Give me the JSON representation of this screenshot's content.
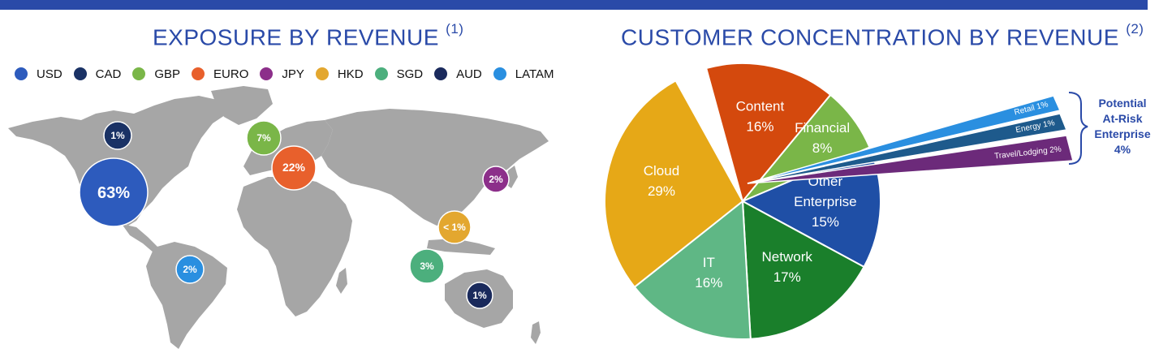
{
  "colors": {
    "accent": "#2a4aa8",
    "map": "#a6a6a6"
  },
  "exposure": {
    "title": "EXPOSURE BY REVENUE",
    "note": "(1)",
    "legend": [
      {
        "name": "USD",
        "color": "#2d5bbd"
      },
      {
        "name": "CAD",
        "color": "#1a3265"
      },
      {
        "name": "GBP",
        "color": "#7ab648"
      },
      {
        "name": "EURO",
        "color": "#e8602c"
      },
      {
        "name": "JPY",
        "color": "#8c2f8a"
      },
      {
        "name": "HKD",
        "color": "#e3a72f"
      },
      {
        "name": "SGD",
        "color": "#4caf7d"
      },
      {
        "name": "AUD",
        "color": "#1a2a5c"
      },
      {
        "name": "LATAM",
        "color": "#2a8fe0"
      }
    ]
  },
  "chart_data": [
    {
      "type": "bubble-map",
      "title": "EXPOSURE BY REVENUE",
      "points": [
        {
          "currency": "USD",
          "label": "63%",
          "value": 63
        },
        {
          "currency": "CAD",
          "label": "1%",
          "value": 1
        },
        {
          "currency": "GBP",
          "label": "7%",
          "value": 7
        },
        {
          "currency": "EURO",
          "label": "22%",
          "value": 22
        },
        {
          "currency": "JPY",
          "label": "2%",
          "value": 2
        },
        {
          "currency": "HKD",
          "label": "< 1%",
          "value": 0.5
        },
        {
          "currency": "SGD",
          "label": "3%",
          "value": 3
        },
        {
          "currency": "AUD",
          "label": "1%",
          "value": 1
        },
        {
          "currency": "LATAM",
          "label": "2%",
          "value": 2
        }
      ]
    },
    {
      "type": "pie",
      "title": "CUSTOMER CONCENTRATION BY REVENUE",
      "note": "(2)",
      "slices": [
        {
          "label": "Content",
          "value": 16,
          "pct": "16%",
          "color": "#d4490d"
        },
        {
          "label": "Financial",
          "value": 8,
          "pct": "8%",
          "color": "#7ab648"
        },
        {
          "label": "Other Enterprise",
          "value": 15,
          "pct": "15%",
          "color": "#1f4fa6"
        },
        {
          "label": "Network",
          "value": 17,
          "pct": "17%",
          "color": "#1a7f2b"
        },
        {
          "label": "IT",
          "value": 16,
          "pct": "16%",
          "color": "#5fb785"
        },
        {
          "label": "Cloud",
          "value": 29,
          "pct": "29%",
          "color": "#e6a817"
        }
      ],
      "exploded": [
        {
          "label": "Retail 1%",
          "value": 1,
          "color": "#2a8fe0"
        },
        {
          "label": "Energy 1%",
          "value": 1,
          "color": "#1e5a8c"
        },
        {
          "label": "Travel/Lodging 2%",
          "value": 2,
          "color": "#6c2a7a"
        }
      ],
      "bracket_label": [
        "Potential",
        "At-Risk",
        "Enterprise",
        "4%"
      ]
    }
  ]
}
